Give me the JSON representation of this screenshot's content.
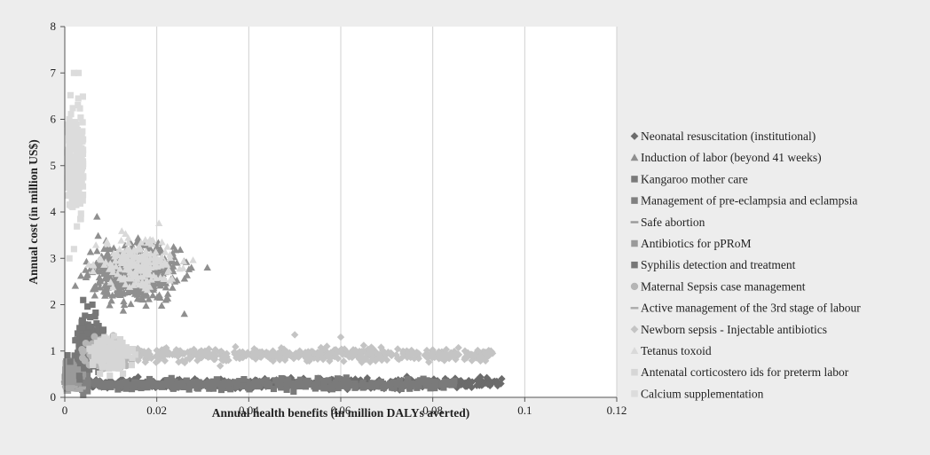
{
  "chart_data": {
    "type": "scatter",
    "title": "",
    "xlabel": "Annual health benefits (in million DALYs averted)",
    "ylabel": "Annual cost (in million US$)",
    "xlim": [
      0,
      0.12
    ],
    "ylim": [
      0,
      8
    ],
    "xticks": [
      0,
      0.02,
      0.04,
      0.06,
      0.08,
      0.1,
      0.12
    ],
    "xtick_labels": [
      "0",
      "0.02",
      "0.04",
      "0.06",
      "0.08",
      "0.1",
      "0.12"
    ],
    "yticks": [
      0,
      1,
      2,
      3,
      4,
      5,
      6,
      7,
      8
    ],
    "ytick_labels": [
      "0",
      "1",
      "2",
      "3",
      "4",
      "5",
      "6",
      "7",
      "8"
    ],
    "grid": "vertical",
    "legend_position": "right",
    "series": [
      {
        "name": "Neonatal resuscitation (institutional)",
        "marker": "diamond",
        "color": "#6b6b6b",
        "cloud": {
          "x_range": [
            0.001,
            0.095
          ],
          "y_center": 0.3,
          "y_spread": 0.1,
          "n": 450
        },
        "points": [
          [
            0.05,
            0.3
          ],
          [
            0.08,
            0.35
          ],
          [
            0.09,
            0.35
          ],
          [
            0.095,
            0.4
          ]
        ]
      },
      {
        "name": "Induction of labor   (beyond 41 weeks)",
        "marker": "triangle",
        "color": "#8f8f8f",
        "cloud": {
          "x_center": 0.015,
          "x_spread": 0.009,
          "y_center": 2.7,
          "y_spread": 0.6,
          "n": 500
        },
        "points": [
          [
            0.007,
            3.9
          ],
          [
            0.031,
            2.8
          ],
          [
            0.026,
            1.8
          ]
        ]
      },
      {
        "name": "Kangaroo mother care",
        "marker": "square",
        "color": "#7a7a7a",
        "cloud": {
          "x_range": [
            0.003,
            0.085
          ],
          "y_center": 0.28,
          "y_spread": 0.1,
          "n": 400
        },
        "points": []
      },
      {
        "name": "Management of pre-eclampsia and eclampsia",
        "marker": "square",
        "color": "#808080",
        "cloud": {
          "x_range": [
            0.0,
            0.005
          ],
          "y_center": 0.35,
          "y_spread": 0.2,
          "n": 80
        },
        "points": []
      },
      {
        "name": "Safe abortion",
        "marker": "dash",
        "color": "#999999",
        "cloud": {
          "x_range": [
            0.0,
            0.003
          ],
          "y_center": 0.3,
          "y_spread": 0.12,
          "n": 40
        },
        "points": []
      },
      {
        "name": "Antibiotics for pPRoM",
        "marker": "square",
        "color": "#9a9a9a",
        "cloud": {
          "x_range": [
            0.0,
            0.004
          ],
          "y_center": 0.6,
          "y_spread": 0.3,
          "n": 60
        },
        "points": []
      },
      {
        "name": "Syphilis detection and treatment",
        "marker": "square",
        "color": "#777777",
        "cloud": {
          "x_center": 0.005,
          "x_spread": 0.003,
          "y_center": 1.2,
          "y_spread": 0.5,
          "n": 160
        },
        "points": [
          [
            0.004,
            2.1
          ],
          [
            0.006,
            2.0
          ]
        ]
      },
      {
        "name": "Maternal Sepsis case management",
        "marker": "circle",
        "color": "#b5b5b5",
        "cloud": {
          "x_center": 0.009,
          "x_spread": 0.004,
          "y_center": 0.95,
          "y_spread": 0.28,
          "n": 260
        },
        "points": []
      },
      {
        "name": "Active management of the 3rd stage of labour",
        "marker": "dash",
        "color": "#aaaaaa",
        "cloud": {
          "x_range": [
            0.0,
            0.004
          ],
          "y_center": 0.2,
          "y_spread": 0.08,
          "n": 30
        },
        "points": []
      },
      {
        "name": "Newborn sepsis - Injectable antibiotics",
        "marker": "diamond",
        "color": "#c4c4c4",
        "cloud": {
          "x_range": [
            0.015,
            0.093
          ],
          "y_center": 0.92,
          "y_spread": 0.14,
          "n": 450
        },
        "points": [
          [
            0.093,
            0.95
          ],
          [
            0.087,
            1.0
          ],
          [
            0.06,
            1.3
          ],
          [
            0.05,
            1.35
          ]
        ]
      },
      {
        "name": "Tetanus toxoid",
        "marker": "triangle",
        "color": "#d9d9d9",
        "cloud": {
          "x_center": 0.016,
          "x_spread": 0.008,
          "y_center": 2.9,
          "y_spread": 0.5,
          "n": 200
        },
        "points": []
      },
      {
        "name": "Antenatal corticostero   ids for preterm labor",
        "marker": "square",
        "color": "#d6d6d6",
        "cloud": {
          "x_center": 0.01,
          "x_spread": 0.004,
          "y_center": 0.95,
          "y_spread": 0.3,
          "n": 180
        },
        "points": []
      },
      {
        "name": "Calcium supplementation",
        "marker": "square",
        "color": "#dcdcdc",
        "cloud": {
          "x_range": [
            0.0005,
            0.004
          ],
          "y_center": 5.0,
          "y_spread": 1.1,
          "n": 260
        },
        "points": [
          [
            0.002,
            7.0
          ],
          [
            0.003,
            7.0
          ],
          [
            0.001,
            3.0
          ],
          [
            0.002,
            3.2
          ]
        ]
      }
    ]
  }
}
